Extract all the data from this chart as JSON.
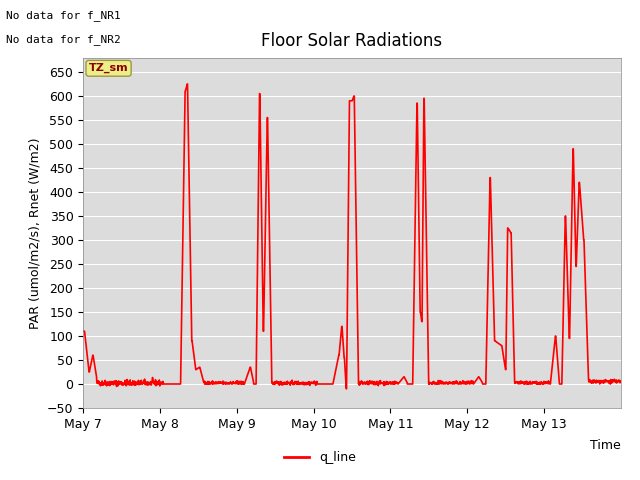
{
  "title": "Floor Solar Radiations",
  "ylabel": "PAR (umol/m2/s), Rnet (W/m2)",
  "xlabel_right": "Time",
  "ylim": [
    -50,
    680
  ],
  "yticks": [
    -50,
    0,
    50,
    100,
    150,
    200,
    250,
    300,
    350,
    400,
    450,
    500,
    550,
    600,
    650
  ],
  "line_color": "#FF0000",
  "line_width": 1.2,
  "axes_bg": "#DCDCDC",
  "grid_color": "#FFFFFF",
  "legend_label": "q_line",
  "no_data_text1": "No data for f_NR1",
  "no_data_text2": "No data for f_NR2",
  "annotation_text": "TZ_sm",
  "x_tick_labels": [
    "May 7",
    "May 8",
    "May 9",
    "May 10",
    "May 11",
    "May 12",
    "May 13"
  ],
  "x_tick_positions": [
    0,
    1,
    2,
    3,
    4,
    5,
    6
  ]
}
